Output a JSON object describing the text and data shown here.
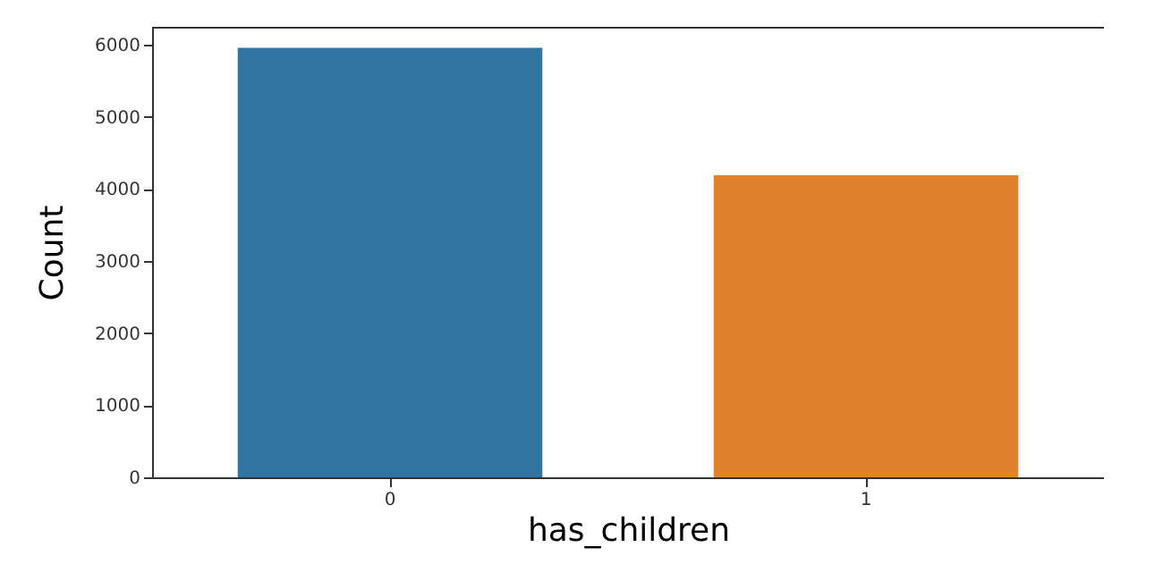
{
  "chart_data": {
    "type": "bar",
    "xlabel": "has_children",
    "ylabel": "Count",
    "categories": [
      "0",
      "1"
    ],
    "values": [
      5960,
      4190
    ],
    "colors": [
      "#3274a1",
      "#e1812c"
    ],
    "ylim": [
      0,
      6250
    ],
    "yticks": [
      0,
      1000,
      2000,
      3000,
      4000,
      5000,
      6000
    ],
    "grid": false,
    "legend": false
  }
}
